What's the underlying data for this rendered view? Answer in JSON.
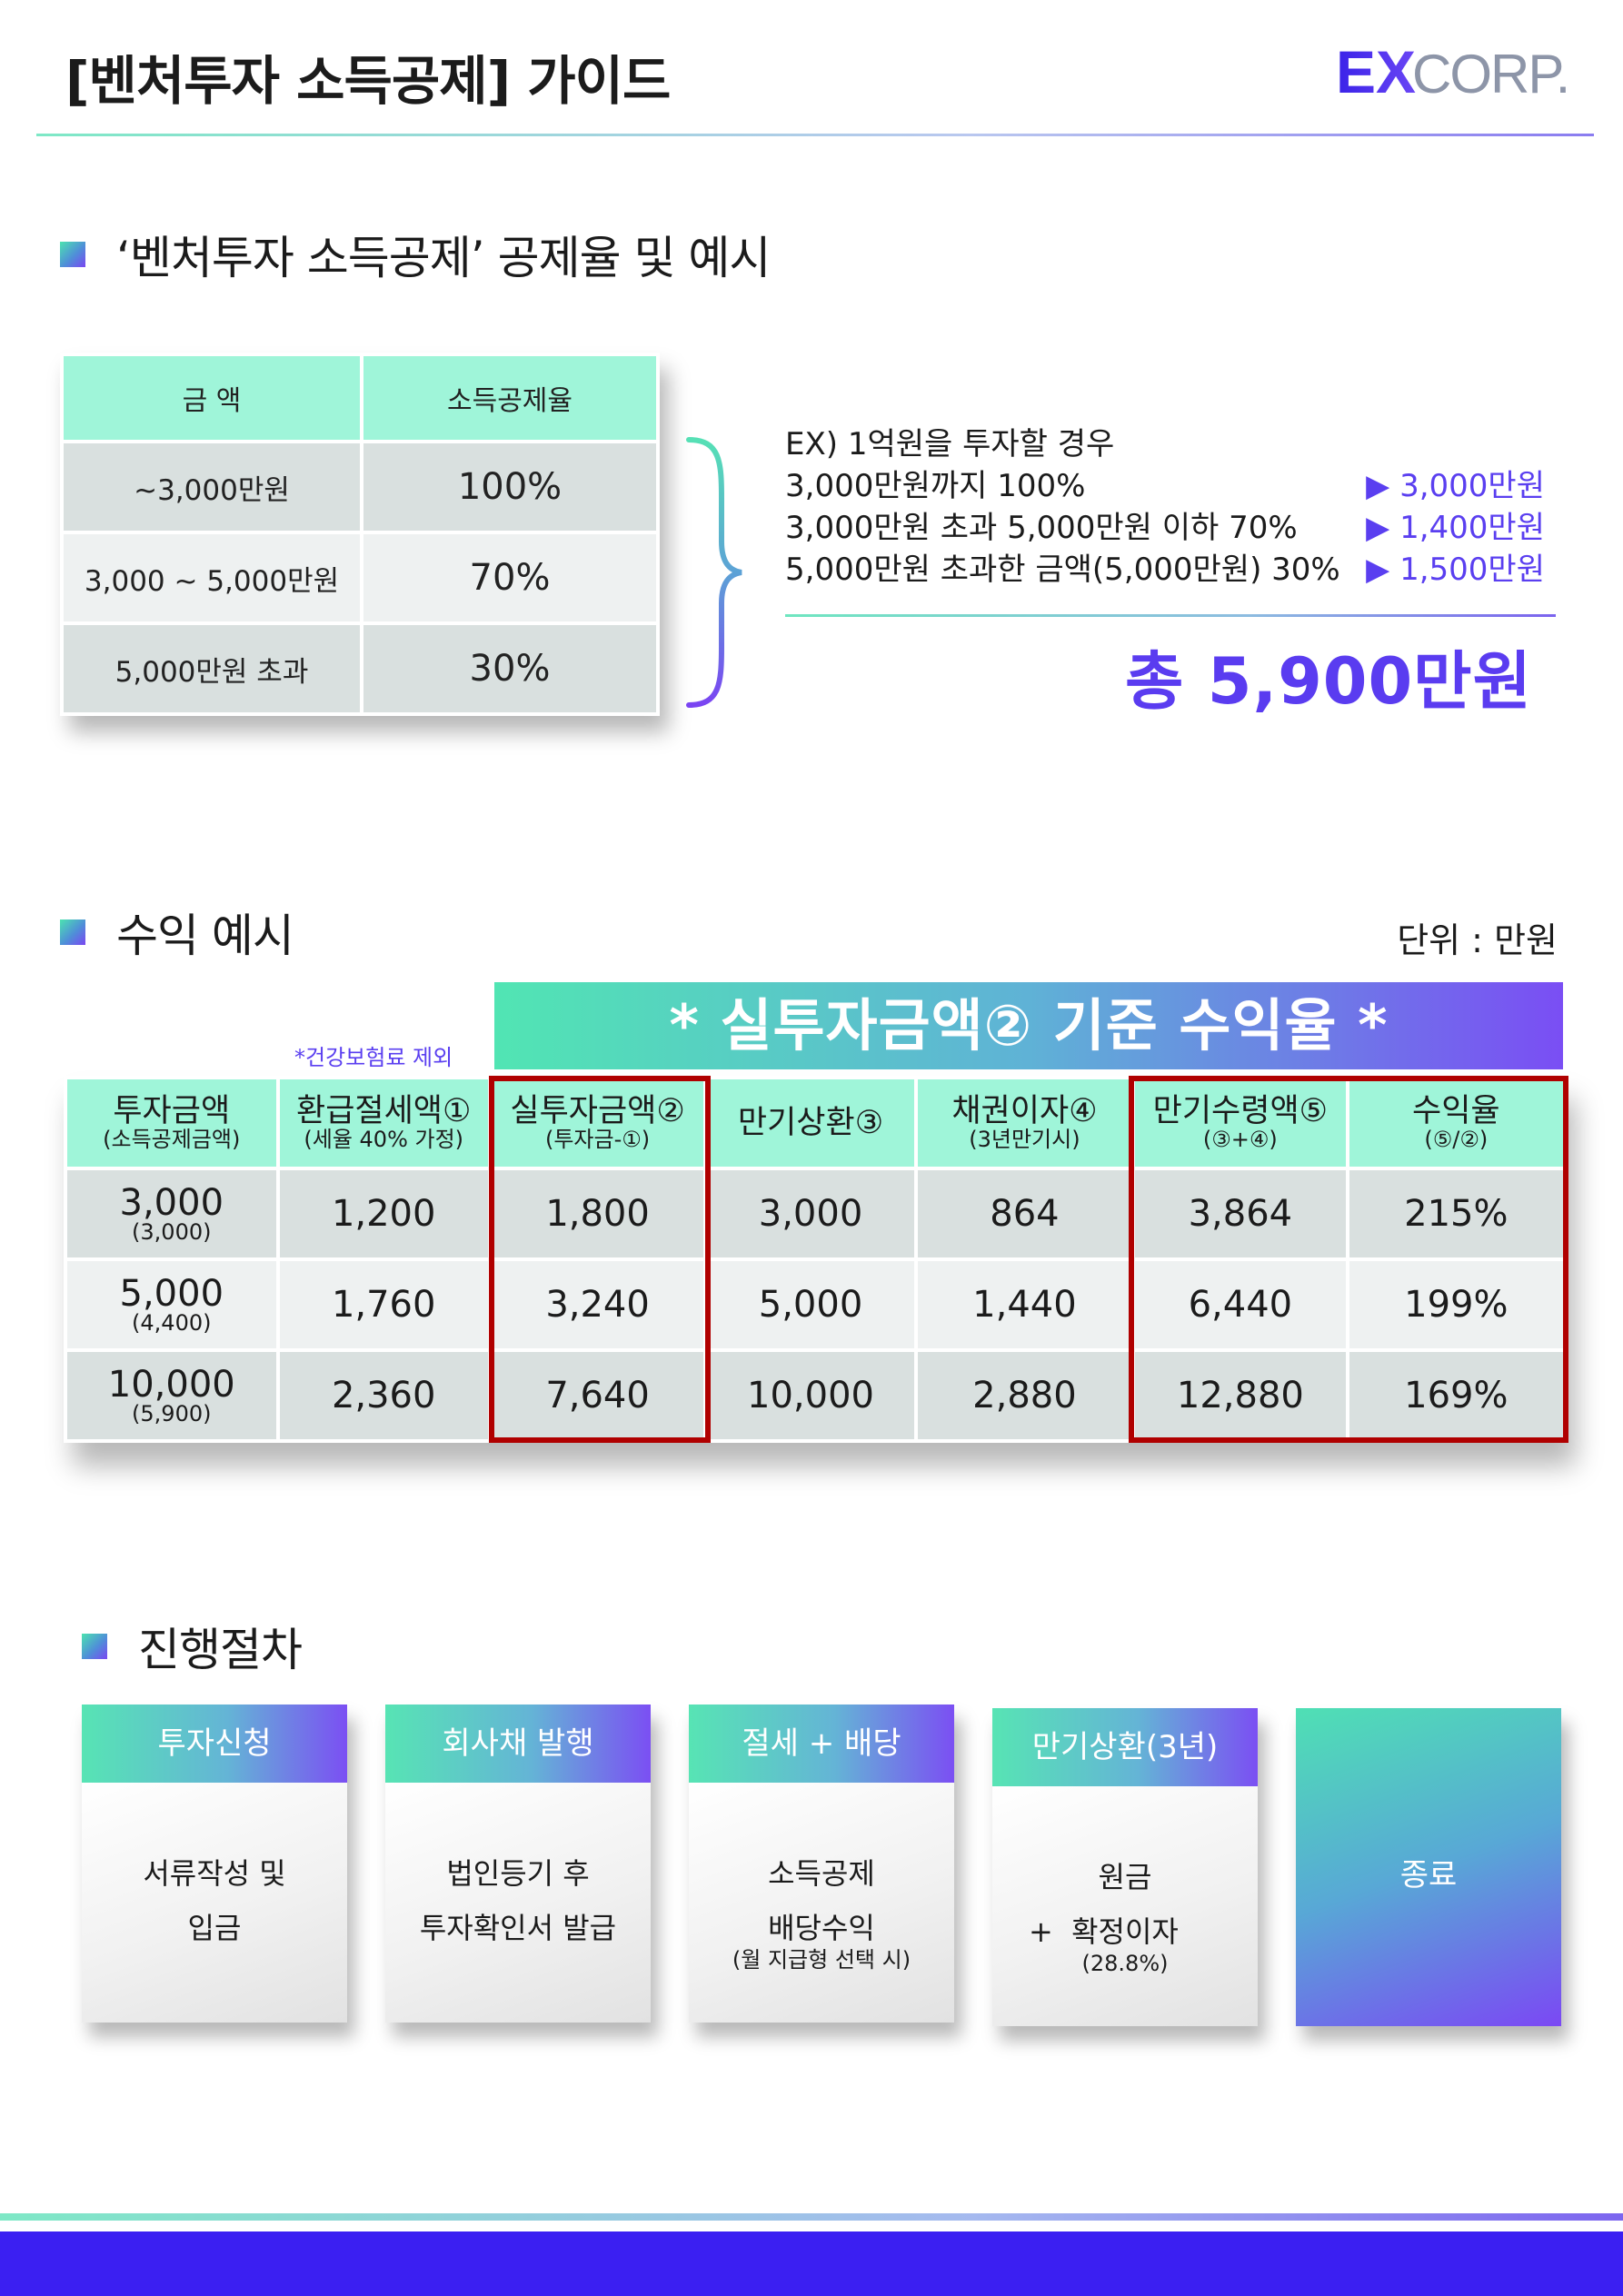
{
  "header": {
    "title": "[벤처투자 소득공제] 가이드",
    "logo": {
      "ex": "EX",
      "corp": "CORP."
    }
  },
  "section1": {
    "heading": "‘벤처투자 소득공제’ 공제율 및 예시",
    "table": {
      "headers": [
        "금 액",
        "소득공제율"
      ],
      "rows": [
        {
          "amount": "~3,000만원",
          "rate": "100%"
        },
        {
          "amount": "3,000 ~ 5,000만원",
          "rate": "70%"
        },
        {
          "amount": "5,000만원 초과",
          "rate": "30%"
        }
      ]
    },
    "example": {
      "intro": "EX) 1억원을 투자할 경우",
      "lines": [
        {
          "text": "3,000만원까지 100%",
          "result": "▶ 3,000만원"
        },
        {
          "text": "3,000만원 초과 5,000만원 이하 70%",
          "result": "▶ 1,400만원"
        },
        {
          "text": "5,000만원 초과한 금액(5,000만원) 30%",
          "result": "▶ 1,500만원"
        }
      ],
      "total": "총 5,900만원"
    }
  },
  "section2": {
    "heading": "수익 예시",
    "unit": "단위 : 만원",
    "banner": "* 실투자금액② 기준 수익율 *",
    "note": "*건강보험료 제외",
    "headers": [
      {
        "main": "투자금액",
        "sub": "(소득공제금액)"
      },
      {
        "main": "환급절세액①",
        "sub": "(세율 40% 가정)"
      },
      {
        "main": "실투자금액②",
        "sub": "(투자금-①)"
      },
      {
        "main": "만기상환③",
        "sub": ""
      },
      {
        "main": "채권이자④",
        "sub": "(3년만기시)"
      },
      {
        "main": "만기수령액⑤",
        "sub": "(③+④)"
      },
      {
        "main": "수익율",
        "sub": "(⑤/②)"
      }
    ],
    "rows": [
      {
        "invest": "3,000",
        "invest_sub": "(3,000)",
        "refund": "1,200",
        "actual": "1,800",
        "maturity": "3,000",
        "interest": "864",
        "received": "3,864",
        "yield": "215%"
      },
      {
        "invest": "5,000",
        "invest_sub": "(4,400)",
        "refund": "1,760",
        "actual": "3,240",
        "maturity": "5,000",
        "interest": "1,440",
        "received": "6,440",
        "yield": "199%"
      },
      {
        "invest": "10,000",
        "invest_sub": "(5,900)",
        "refund": "2,360",
        "actual": "7,640",
        "maturity": "10,000",
        "interest": "2,880",
        "received": "12,880",
        "yield": "169%"
      }
    ]
  },
  "section3": {
    "heading": "진행절차",
    "steps": [
      {
        "title": "투자신청",
        "line1": "서류작성 및",
        "line2": "입금",
        "sub": ""
      },
      {
        "title": "회사채 발행",
        "line1": "법인등기 후",
        "line2": "투자확인서 발급",
        "sub": ""
      },
      {
        "title": "절세 + 배당",
        "line1": "소득공제",
        "line2": "배당수익",
        "sub": "(월 지급형 선택 시)"
      },
      {
        "title": "만기상환(3년)",
        "line1": "원금",
        "plus": "+",
        "line2": "확정이자",
        "sub": "(28.8%)"
      },
      {
        "title": "종료"
      }
    ]
  },
  "colors": {
    "accent_purple": "#5a3cf0",
    "mint": "#9ff5d9",
    "highlight_red": "#b00000",
    "footer_blue": "#3b1ff2"
  }
}
